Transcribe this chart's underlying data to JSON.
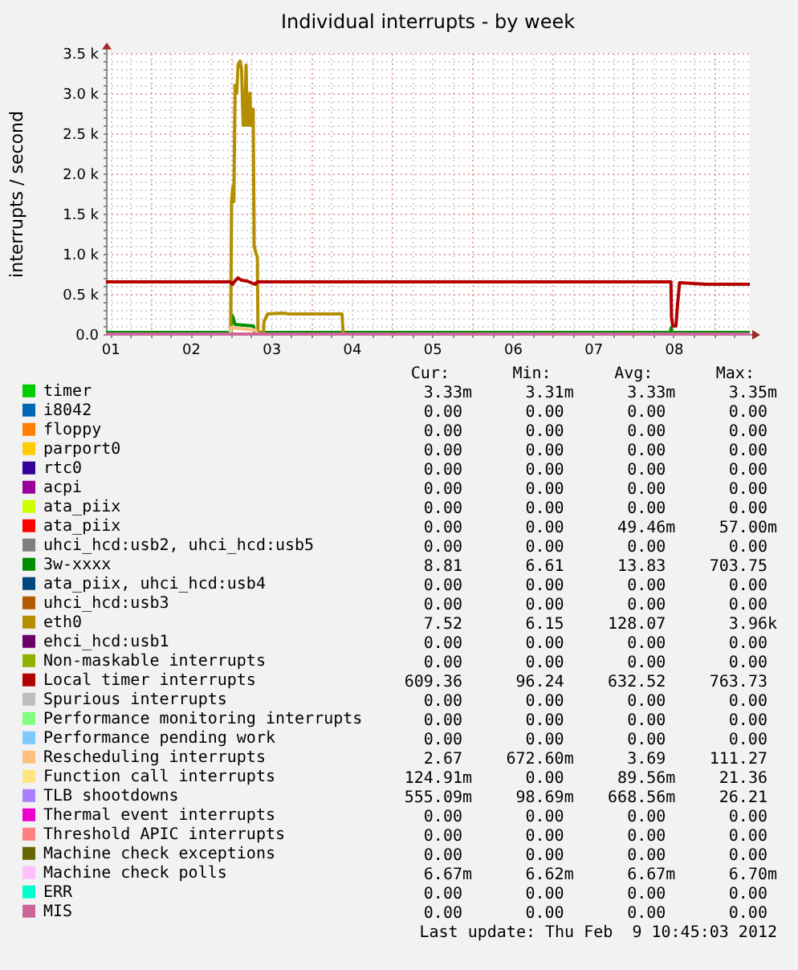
{
  "chart_data": {
    "type": "line",
    "title": "Individual interrupts - by week",
    "ylabel": "interrupts / second",
    "xlim": [
      1.448,
      9.448
    ],
    "xticks": [
      {
        "value": 1.5,
        "label": "01"
      },
      {
        "value": 1.75,
        "label": null
      },
      {
        "value": 2,
        "label": null
      },
      {
        "value": 2.25,
        "label": null
      },
      {
        "value": 2.5,
        "label": "02"
      },
      {
        "value": 2.75,
        "label": null
      },
      {
        "value": 3,
        "label": null
      },
      {
        "value": 3.25,
        "label": null
      },
      {
        "value": 3.5,
        "label": "03"
      },
      {
        "value": 3.75,
        "label": null
      },
      {
        "value": 4,
        "label": null
      },
      {
        "value": 4.25,
        "label": null
      },
      {
        "value": 4.5,
        "label": "04"
      },
      {
        "value": 4.75,
        "label": null
      },
      {
        "value": 5,
        "label": null
      },
      {
        "value": 5.25,
        "label": null
      },
      {
        "value": 5.5,
        "label": "05"
      },
      {
        "value": 5.75,
        "label": null
      },
      {
        "value": 6,
        "label": null
      },
      {
        "value": 6.25,
        "label": null
      },
      {
        "value": 6.5,
        "label": "06"
      },
      {
        "value": 6.75,
        "label": null
      },
      {
        "value": 7,
        "label": null
      },
      {
        "value": 7.25,
        "label": null
      },
      {
        "value": 7.5,
        "label": "07"
      },
      {
        "value": 7.75,
        "label": null
      },
      {
        "value": 8,
        "label": null
      },
      {
        "value": 8.25,
        "label": null
      },
      {
        "value": 8.5,
        "label": "08"
      },
      {
        "value": 8.75,
        "label": null
      },
      {
        "value": 9,
        "label": null
      },
      {
        "value": 9.25,
        "label": null
      }
    ],
    "ylim": [
      0,
      3500
    ],
    "yticks": [
      {
        "value": 0,
        "label": "0.0"
      },
      {
        "value": 100,
        "label": null
      },
      {
        "value": 200,
        "label": null
      },
      {
        "value": 300,
        "label": null
      },
      {
        "value": 400,
        "label": null
      },
      {
        "value": 500,
        "label": "0.5 k"
      },
      {
        "value": 600,
        "label": null
      },
      {
        "value": 700,
        "label": null
      },
      {
        "value": 800,
        "label": null
      },
      {
        "value": 900,
        "label": null
      },
      {
        "value": 1000,
        "label": "1.0 k"
      },
      {
        "value": 1100,
        "label": null
      },
      {
        "value": 1200,
        "label": null
      },
      {
        "value": 1300,
        "label": null
      },
      {
        "value": 1400,
        "label": null
      },
      {
        "value": 1500,
        "label": "1.5 k"
      },
      {
        "value": 1600,
        "label": null
      },
      {
        "value": 1700,
        "label": null
      },
      {
        "value": 1800,
        "label": null
      },
      {
        "value": 1900,
        "label": null
      },
      {
        "value": 2000,
        "label": "2.0 k"
      },
      {
        "value": 2100,
        "label": null
      },
      {
        "value": 2200,
        "label": null
      },
      {
        "value": 2300,
        "label": null
      },
      {
        "value": 2400,
        "label": null
      },
      {
        "value": 2500,
        "label": "2.5 k"
      },
      {
        "value": 2600,
        "label": null
      },
      {
        "value": 2700,
        "label": null
      },
      {
        "value": 2800,
        "label": null
      },
      {
        "value": 2900,
        "label": null
      },
      {
        "value": 3000,
        "label": "3.0 k"
      },
      {
        "value": 3100,
        "label": null
      },
      {
        "value": 3200,
        "label": null
      },
      {
        "value": 3300,
        "label": null
      },
      {
        "value": 3400,
        "label": null
      },
      {
        "value": 3500,
        "label": "3.5 k"
      }
    ],
    "grid": true,
    "legend": "bottom",
    "series": [
      {
        "name": "timer",
        "color": "#00CC00",
        "values": [
          null
        ]
      },
      {
        "name": "i8042",
        "color": "#0066B3",
        "values": [
          null
        ]
      },
      {
        "name": "floppy",
        "color": "#FF8000",
        "values": [
          null
        ]
      },
      {
        "name": "parport0",
        "color": "#FFCC00",
        "values": [
          null
        ]
      },
      {
        "name": "rtc0",
        "color": "#330099",
        "values": [
          null
        ]
      },
      {
        "name": "acpi",
        "color": "#990099",
        "values": [
          null
        ]
      },
      {
        "name": "ata_piix",
        "color": "#CCFF00",
        "values": [
          null
        ]
      },
      {
        "name": "ata_piix",
        "color": "#FF0000",
        "values": [
          null
        ]
      },
      {
        "name": "uhci_hcd:usb2, uhci_hcd:usb5",
        "color": "#808080",
        "values": [
          null
        ]
      },
      {
        "name": "3w-xxxx",
        "color": "#008F00",
        "x": [
          1.448,
          3.0,
          3.01,
          3.03,
          3.05,
          3.28,
          3.3,
          8.46,
          8.47,
          8.48,
          9.448
        ],
        "values": [
          20,
          20,
          240,
          200,
          120,
          100,
          20,
          20,
          80,
          20,
          20
        ]
      },
      {
        "name": "ata_piix, uhci_hcd:usb4",
        "color": "#00487D",
        "values": [
          null
        ]
      },
      {
        "name": "uhci_hcd:usb3",
        "color": "#B35A00",
        "values": [
          null
        ]
      },
      {
        "name": "eth0",
        "color": "#B38F00",
        "x": [
          2.997,
          3.009,
          3.023,
          3.037,
          3.053,
          3.073,
          3.089,
          3.113,
          3.133,
          3.153,
          3.173,
          3.189,
          3.203,
          3.223,
          3.237,
          3.249,
          3.263,
          3.277,
          3.289,
          3.313,
          3.329,
          3.337,
          3.403,
          3.413,
          3.457,
          3.642,
          3.722,
          4.381,
          4.395
        ],
        "values": [
          10,
          1650,
          1830,
          1650,
          3100,
          3000,
          3350,
          3400,
          3300,
          2600,
          2600,
          3350,
          2600,
          2600,
          3000,
          2600,
          2800,
          2800,
          1100,
          1000,
          960,
          10,
          10,
          160,
          250,
          260,
          250,
          250,
          10
        ]
      },
      {
        "name": "ehci_hcd:usb1",
        "color": "#6B006B",
        "values": [
          null
        ]
      },
      {
        "name": "Non-maskable interrupts",
        "color": "#8FB300",
        "values": [
          null
        ]
      },
      {
        "name": "Local timer interrupts",
        "color": "#B30000",
        "x": [
          1.448,
          2.99,
          3.02,
          3.05,
          3.09,
          3.13,
          3.2,
          3.3,
          3.33,
          8.468,
          8.475,
          8.49,
          8.53,
          8.55,
          8.575,
          8.9,
          9.448
        ],
        "values": [
          650,
          650,
          620,
          660,
          700,
          670,
          660,
          620,
          650,
          650,
          210,
          100,
          100,
          370,
          640,
          620,
          620
        ]
      },
      {
        "name": "Spurious interrupts",
        "color": "#BEBEBE",
        "values": [
          null
        ]
      },
      {
        "name": "Performance monitoring interrupts",
        "color": "#80FF80",
        "values": [
          null
        ]
      },
      {
        "name": "Performance pending work",
        "color": "#80C9FF",
        "values": [
          null
        ]
      },
      {
        "name": "Rescheduling interrupts",
        "color": "#FFC080",
        "x": [
          2.99,
          3.0,
          3.1,
          3.2,
          3.3,
          3.34
        ],
        "values": [
          0,
          80,
          70,
          60,
          50,
          0
        ]
      },
      {
        "name": "Function call interrupts",
        "color": "#FFE680",
        "values": [
          null
        ]
      },
      {
        "name": "TLB shootdowns",
        "color": "#AA80FF",
        "values": [
          null
        ]
      },
      {
        "name": "Thermal event interrupts",
        "color": "#EE00CC",
        "values": [
          null
        ]
      },
      {
        "name": "Threshold APIC interrupts",
        "color": "#FF8080",
        "values": [
          null
        ]
      },
      {
        "name": "Machine check exceptions",
        "color": "#666600",
        "values": [
          null
        ]
      },
      {
        "name": "Machine check polls",
        "color": "#FFBFFF",
        "values": [
          null
        ]
      },
      {
        "name": "ERR",
        "color": "#00FFCC",
        "values": [
          null
        ]
      },
      {
        "name": "MIS",
        "color": "#CC6699",
        "x": [
          1.448,
          9.448
        ],
        "values": [
          0,
          0
        ]
      }
    ],
    "annotations": [
      "Cur:",
      "Min:",
      "Avg:",
      "Max:",
      "3.33m",
      "3.31m",
      "3.33m",
      "3.35m",
      "0.00",
      "0.00",
      "0.00",
      "0.00",
      "0.00",
      "0.00",
      "0.00",
      "0.00",
      "0.00",
      "0.00",
      "0.00",
      "0.00",
      "0.00",
      "0.00",
      "0.00",
      "0.00",
      "0.00",
      "0.00",
      "0.00",
      "0.00",
      "0.00",
      "0.00",
      "0.00",
      "0.00",
      "0.00",
      "0.00",
      "49.46m",
      "57.00m",
      "0.00",
      "0.00",
      "0.00",
      "0.00",
      "8.81",
      "6.61",
      "13.83",
      "703.75",
      "0.00",
      "0.00",
      "0.00",
      "0.00",
      "0.00",
      "0.00",
      "0.00",
      "0.00",
      "7.52",
      "6.15",
      "128.07",
      "3.96k",
      "0.00",
      "0.00",
      "0.00",
      "0.00",
      "0.00",
      "0.00",
      "0.00",
      "0.00",
      "609.36",
      "96.24",
      "632.52",
      "763.73",
      "0.00",
      "0.00",
      "0.00",
      "0.00",
      "0.00",
      "0.00",
      "0.00",
      "0.00",
      "0.00",
      "0.00",
      "0.00",
      "0.00",
      "2.67",
      "672.60m",
      "3.69",
      "111.27",
      "124.91m",
      "0.00",
      "89.56m",
      "21.36",
      "555.09m",
      "98.69m",
      "668.56m",
      "26.21",
      "0.00",
      "0.00",
      "0.00",
      "0.00",
      "0.00",
      "0.00",
      "0.00",
      "0.00",
      "0.00",
      "0.00",
      "0.00",
      "0.00",
      "6.67m",
      "6.62m",
      "6.67m",
      "6.70m",
      "0.00",
      "0.00",
      "0.00",
      "0.00",
      "0.00",
      "0.00",
      "0.00",
      "0.00",
      "Last update: Thu Feb  9 10:45:03 2012"
    ]
  }
}
